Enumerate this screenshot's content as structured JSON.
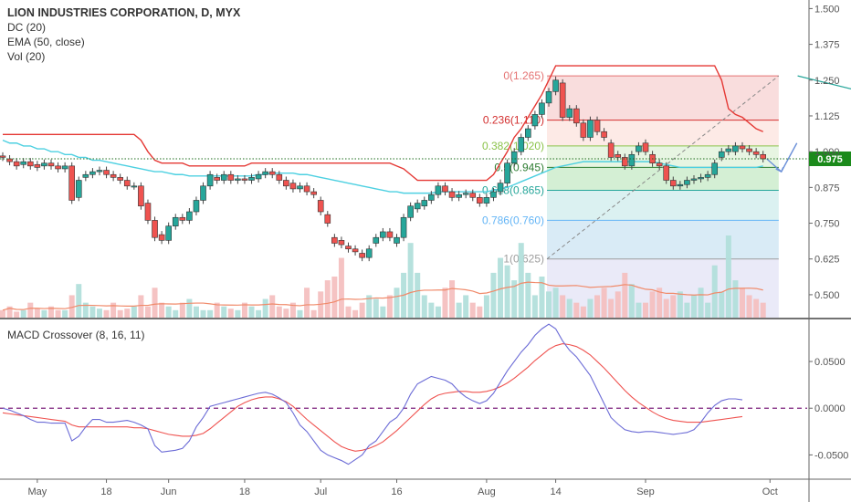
{
  "legend": {
    "title": "LION INDUSTRIES CORPORATION, D, MYX",
    "dc": "DC (20)",
    "ema": "EMA (50, close)",
    "vol": "Vol (20)",
    "macd": "MACD Crossover (8, 16, 11)"
  },
  "colors": {
    "up": "#26a69a",
    "down": "#ef5350",
    "wick": "#444444",
    "donchian": "#e53935",
    "ema": "#4dd0e1",
    "trend": "#26a69a",
    "macd": "#6b6bd6",
    "signal": "#ef5350",
    "zero": "#7b1f7b",
    "last_price_bg": "#1b8a1b",
    "arrow": "#6a8fd8"
  },
  "last_price_label": "0.975",
  "chart_data": [
    {
      "type": "candlestick",
      "title": "LION INDUSTRIES CORPORATION, D, MYX",
      "ylim": [
        0.42,
        1.53
      ],
      "y_ticks": [
        "1.500",
        "1.375",
        "1.250",
        "1.125",
        "1.000",
        "0.875",
        "0.750",
        "0.625",
        "0.500"
      ],
      "x_ticks": [
        "May",
        "18",
        "Jun",
        "18",
        "Jul",
        "16",
        "Aug",
        "14",
        "Sep",
        "Oct"
      ],
      "last_price": 0.975,
      "candles": [
        [
          0.985,
          0.98
        ],
        [
          0.975,
          0.965
        ],
        [
          0.965,
          0.95
        ],
        [
          0.955,
          0.965
        ],
        [
          0.965,
          0.95
        ],
        [
          0.955,
          0.945
        ],
        [
          0.95,
          0.96
        ],
        [
          0.96,
          0.95
        ],
        [
          0.95,
          0.94
        ],
        [
          0.94,
          0.95
        ],
        [
          0.95,
          0.83
        ],
        [
          0.84,
          0.9
        ],
        [
          0.91,
          0.92
        ],
        [
          0.92,
          0.93
        ],
        [
          0.93,
          0.935
        ],
        [
          0.935,
          0.92
        ],
        [
          0.92,
          0.91
        ],
        [
          0.91,
          0.9
        ],
        [
          0.9,
          0.88
        ],
        [
          0.88,
          0.88
        ],
        [
          0.88,
          0.81
        ],
        [
          0.82,
          0.76
        ],
        [
          0.76,
          0.7
        ],
        [
          0.71,
          0.69
        ],
        [
          0.69,
          0.74
        ],
        [
          0.74,
          0.77
        ],
        [
          0.77,
          0.76
        ],
        [
          0.76,
          0.79
        ],
        [
          0.79,
          0.83
        ],
        [
          0.83,
          0.88
        ],
        [
          0.88,
          0.92
        ],
        [
          0.91,
          0.9
        ],
        [
          0.9,
          0.92
        ],
        [
          0.92,
          0.9
        ],
        [
          0.9,
          0.905
        ],
        [
          0.905,
          0.9
        ],
        [
          0.9,
          0.91
        ],
        [
          0.905,
          0.92
        ],
        [
          0.92,
          0.93
        ],
        [
          0.93,
          0.92
        ],
        [
          0.92,
          0.9
        ],
        [
          0.9,
          0.88
        ],
        [
          0.89,
          0.87
        ],
        [
          0.87,
          0.88
        ],
        [
          0.88,
          0.86
        ],
        [
          0.86,
          0.85
        ],
        [
          0.83,
          0.79
        ],
        [
          0.78,
          0.75
        ],
        [
          0.7,
          0.68
        ],
        [
          0.69,
          0.675
        ],
        [
          0.67,
          0.66
        ],
        [
          0.66,
          0.65
        ],
        [
          0.645,
          0.63
        ],
        [
          0.63,
          0.66
        ],
        [
          0.68,
          0.7
        ],
        [
          0.7,
          0.72
        ],
        [
          0.72,
          0.7
        ],
        [
          0.68,
          0.7
        ],
        [
          0.7,
          0.77
        ],
        [
          0.77,
          0.81
        ],
        [
          0.8,
          0.82
        ],
        [
          0.81,
          0.83
        ],
        [
          0.83,
          0.85
        ],
        [
          0.85,
          0.88
        ],
        [
          0.88,
          0.86
        ],
        [
          0.86,
          0.84
        ],
        [
          0.84,
          0.85
        ],
        [
          0.85,
          0.855
        ],
        [
          0.855,
          0.84
        ],
        [
          0.84,
          0.82
        ],
        [
          0.82,
          0.84
        ],
        [
          0.84,
          0.86
        ],
        [
          0.86,
          0.89
        ],
        [
          0.89,
          0.96
        ],
        [
          0.96,
          1.0
        ],
        [
          1.0,
          1.05
        ],
        [
          1.05,
          1.08
        ],
        [
          1.09,
          1.13
        ],
        [
          1.13,
          1.17
        ],
        [
          1.17,
          1.21
        ],
        [
          1.21,
          1.25
        ],
        [
          1.24,
          1.12
        ],
        [
          1.12,
          1.15
        ],
        [
          1.15,
          1.1
        ],
        [
          1.1,
          1.05
        ],
        [
          1.05,
          1.11
        ],
        [
          1.11,
          1.07
        ],
        [
          1.07,
          1.05
        ],
        [
          1.03,
          0.98
        ],
        [
          0.99,
          0.98
        ],
        [
          0.98,
          0.95
        ],
        [
          0.95,
          0.99
        ],
        [
          1.0,
          1.02
        ],
        [
          1.03,
          1.0
        ],
        [
          0.99,
          0.96
        ],
        [
          0.96,
          0.95
        ],
        [
          0.95,
          0.9
        ],
        [
          0.9,
          0.88
        ],
        [
          0.88,
          0.885
        ],
        [
          0.885,
          0.9
        ],
        [
          0.9,
          0.905
        ],
        [
          0.905,
          0.91
        ],
        [
          0.91,
          0.92
        ],
        [
          0.92,
          0.96
        ],
        [
          0.98,
          1.0
        ],
        [
          1.0,
          1.01
        ],
        [
          1.0,
          1.02
        ],
        [
          1.02,
          1.01
        ],
        [
          1.01,
          1.0
        ],
        [
          1.0,
          0.99
        ],
        [
          0.99,
          0.975
        ]
      ],
      "volume": [
        0.01,
        0.015,
        0.008,
        0.01,
        0.02,
        0.012,
        0.01,
        0.015,
        0.01,
        0.01,
        0.03,
        0.045,
        0.02,
        0.015,
        0.012,
        0.01,
        0.02,
        0.01,
        0.012,
        0.015,
        0.03,
        0.015,
        0.04,
        0.02,
        0.015,
        0.01,
        0.02,
        0.025,
        0.015,
        0.01,
        0.01,
        0.02,
        0.015,
        0.012,
        0.01,
        0.02,
        0.015,
        0.01,
        0.025,
        0.03,
        0.015,
        0.012,
        0.02,
        0.01,
        0.04,
        0.01,
        0.035,
        0.05,
        0.055,
        0.08,
        0.015,
        0.01,
        0.02,
        0.03,
        0.025,
        0.015,
        0.03,
        0.04,
        0.06,
        0.1,
        0.06,
        0.03,
        0.02,
        0.015,
        0.04,
        0.05,
        0.02,
        0.03,
        0.02,
        0.015,
        0.03,
        0.06,
        0.08,
        0.07,
        0.05,
        0.1,
        0.06,
        0.03,
        0.055,
        0.035,
        0.04,
        0.03,
        0.025,
        0.02,
        0.015,
        0.025,
        0.03,
        0.04,
        0.025,
        0.035,
        0.06,
        0.045,
        0.02,
        0.02,
        0.035,
        0.04,
        0.025,
        0.03,
        0.035,
        0.02,
        0.03,
        0.04,
        0.02,
        0.07,
        0.035,
        0.11,
        0.05,
        0.04,
        0.03,
        0.025,
        0.02
      ],
      "donchian_upper": [
        1.06,
        1.06,
        1.06,
        1.06,
        1.06,
        1.06,
        1.06,
        1.06,
        1.06,
        1.06,
        1.06,
        1.06,
        1.06,
        1.06,
        1.06,
        1.06,
        1.06,
        1.06,
        1.06,
        1.06,
        1.04,
        1.0,
        0.97,
        0.96,
        0.96,
        0.96,
        0.96,
        0.95,
        0.95,
        0.95,
        0.95,
        0.95,
        0.95,
        0.95,
        0.95,
        0.95,
        0.96,
        0.96,
        0.96,
        0.96,
        0.96,
        0.96,
        0.96,
        0.96,
        0.96,
        0.96,
        0.96,
        0.96,
        0.96,
        0.96,
        0.96,
        0.96,
        0.96,
        0.96,
        0.96,
        0.96,
        0.96,
        0.95,
        0.94,
        0.92,
        0.9,
        0.9,
        0.9,
        0.9,
        0.9,
        0.9,
        0.9,
        0.9,
        0.9,
        0.9,
        0.9,
        0.92,
        0.96,
        1.0,
        1.05,
        1.08,
        1.12,
        1.16,
        1.2,
        1.25,
        1.3,
        1.3,
        1.3,
        1.3,
        1.3,
        1.3,
        1.3,
        1.3,
        1.3,
        1.3,
        1.3,
        1.3,
        1.3,
        1.3,
        1.3,
        1.3,
        1.3,
        1.3,
        1.3,
        1.3,
        1.3,
        1.3,
        1.3,
        1.3,
        1.25,
        1.15,
        1.13,
        1.12,
        1.1,
        1.08,
        1.07
      ],
      "ema": [
        1.04,
        1.03,
        1.03,
        1.02,
        1.02,
        1.01,
        1.01,
        1.0,
        1.0,
        0.99,
        0.99,
        0.98,
        0.98,
        0.97,
        0.97,
        0.965,
        0.96,
        0.955,
        0.95,
        0.945,
        0.94,
        0.935,
        0.93,
        0.93,
        0.925,
        0.92,
        0.92,
        0.915,
        0.915,
        0.915,
        0.915,
        0.915,
        0.915,
        0.915,
        0.915,
        0.915,
        0.915,
        0.92,
        0.92,
        0.925,
        0.925,
        0.925,
        0.925,
        0.92,
        0.92,
        0.915,
        0.91,
        0.905,
        0.9,
        0.895,
        0.89,
        0.885,
        0.88,
        0.875,
        0.87,
        0.865,
        0.86,
        0.86,
        0.855,
        0.855,
        0.855,
        0.855,
        0.855,
        0.86,
        0.86,
        0.86,
        0.86,
        0.86,
        0.86,
        0.86,
        0.86,
        0.865,
        0.87,
        0.875,
        0.885,
        0.895,
        0.905,
        0.915,
        0.925,
        0.935,
        0.945,
        0.95,
        0.955,
        0.96,
        0.965,
        0.965,
        0.965,
        0.965,
        0.965,
        0.965,
        0.965,
        0.965,
        0.965,
        0.965,
        0.965,
        0.96,
        0.955,
        0.95,
        0.945,
        0.945,
        0.945,
        0.945,
        0.945,
        0.945,
        0.945,
        0.945,
        0.945,
        0.945,
        0.945,
        0.945,
        0.95
      ],
      "fibonacci": {
        "x_range": [
          79,
          112
        ],
        "levels": [
          {
            "label": "0(1.265)",
            "value": 1.265,
            "color": "#e57373",
            "fill": "#f8d7d7"
          },
          {
            "label": "0.236(1.110)",
            "value": 1.11,
            "color": "#d32f2f",
            "fill": "#fde6e2"
          },
          {
            "label": "0.382(1.020)",
            "value": 1.02,
            "color": "#8bc34a",
            "fill": "#e3f3dd"
          },
          {
            "label": "0.5(0.945)",
            "value": 0.945,
            "color": "#2e7d32",
            "fill": "#cdeccd"
          },
          {
            "label": "0.618(0.865)",
            "value": 0.865,
            "color": "#26a69a",
            "fill": "#d5efef"
          },
          {
            "label": "0.786(0.760)",
            "value": 0.76,
            "color": "#64b5f6",
            "fill": "#d2e7f5"
          },
          {
            "label": "1(0.625)",
            "value": 0.625,
            "color": "#9e9e9e",
            "fill": "#e6e6f7"
          }
        ]
      },
      "trendlines": [
        {
          "from": [
            115,
            1.265
          ],
          "to": [
            159,
            1.005
          ]
        },
        {
          "from": [
            126,
            0.835
          ],
          "to": [
            161,
            0.905
          ]
        }
      ]
    },
    {
      "type": "line",
      "title": "MACD Crossover (8, 16, 11)",
      "ylim": [
        -0.075,
        0.095
      ],
      "y_ticks": [
        "0.0500",
        "0.0000",
        "-0.0500"
      ],
      "series": [
        {
          "name": "MACD",
          "values": [
            0.0,
            -0.002,
            -0.005,
            -0.008,
            -0.012,
            -0.015,
            -0.015,
            -0.016,
            -0.016,
            -0.016,
            -0.035,
            -0.03,
            -0.02,
            -0.012,
            -0.012,
            -0.015,
            -0.015,
            -0.014,
            -0.013,
            -0.015,
            -0.018,
            -0.022,
            -0.04,
            -0.047,
            -0.046,
            -0.045,
            -0.043,
            -0.035,
            -0.02,
            -0.01,
            0.002,
            0.004,
            0.006,
            0.008,
            0.01,
            0.012,
            0.014,
            0.016,
            0.017,
            0.015,
            0.011,
            0.006,
            -0.005,
            -0.018,
            -0.025,
            -0.035,
            -0.045,
            -0.05,
            -0.053,
            -0.056,
            -0.06,
            -0.055,
            -0.05,
            -0.04,
            -0.035,
            -0.025,
            -0.015,
            -0.01,
            0.0,
            0.015,
            0.026,
            0.03,
            0.034,
            0.032,
            0.03,
            0.026,
            0.018,
            0.012,
            0.008,
            0.005,
            0.008,
            0.016,
            0.028,
            0.04,
            0.05,
            0.06,
            0.068,
            0.078,
            0.085,
            0.09,
            0.085,
            0.072,
            0.062,
            0.055,
            0.045,
            0.035,
            0.02,
            0.005,
            -0.01,
            -0.017,
            -0.023,
            -0.025,
            -0.026,
            -0.025,
            -0.025,
            -0.026,
            -0.027,
            -0.028,
            -0.027,
            -0.026,
            -0.023,
            -0.015,
            -0.005,
            0.003,
            0.008,
            0.01,
            0.01,
            0.009
          ]
        },
        {
          "name": "Signal",
          "values": [
            -0.005,
            -0.006,
            -0.007,
            -0.008,
            -0.009,
            -0.01,
            -0.011,
            -0.012,
            -0.013,
            -0.014,
            -0.018,
            -0.02,
            -0.02,
            -0.02,
            -0.02,
            -0.02,
            -0.02,
            -0.02,
            -0.02,
            -0.021,
            -0.021,
            -0.022,
            -0.024,
            -0.026,
            -0.028,
            -0.029,
            -0.03,
            -0.03,
            -0.029,
            -0.027,
            -0.022,
            -0.016,
            -0.01,
            -0.004,
            0.002,
            0.006,
            0.009,
            0.011,
            0.012,
            0.012,
            0.01,
            0.007,
            0.002,
            -0.005,
            -0.012,
            -0.018,
            -0.024,
            -0.03,
            -0.036,
            -0.041,
            -0.044,
            -0.046,
            -0.045,
            -0.043,
            -0.04,
            -0.036,
            -0.03,
            -0.024,
            -0.017,
            -0.01,
            -0.003,
            0.004,
            0.01,
            0.014,
            0.016,
            0.017,
            0.018,
            0.018,
            0.017,
            0.017,
            0.018,
            0.02,
            0.023,
            0.027,
            0.032,
            0.038,
            0.044,
            0.051,
            0.057,
            0.063,
            0.067,
            0.069,
            0.068,
            0.066,
            0.062,
            0.057,
            0.05,
            0.043,
            0.035,
            0.027,
            0.019,
            0.012,
            0.006,
            0.001,
            -0.004,
            -0.008,
            -0.011,
            -0.013,
            -0.014,
            -0.015,
            -0.015,
            -0.015,
            -0.014,
            -0.013,
            -0.012,
            -0.011,
            -0.01,
            -0.009
          ]
        }
      ]
    }
  ]
}
